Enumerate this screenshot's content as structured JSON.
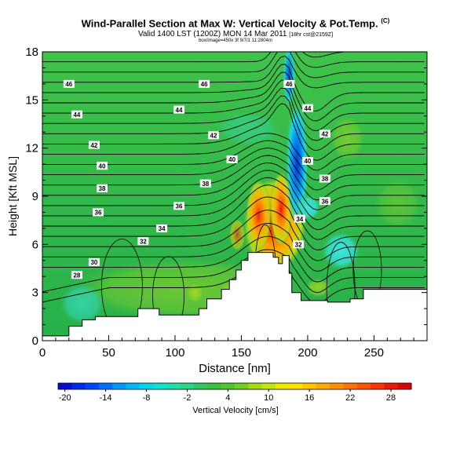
{
  "header": {
    "title": "Wind-Parallel Section at Max W: Vertical Velocity & Pot.Temp.",
    "title_mark": "(C)",
    "subtitle": "Valid 1400 LST (1200Z) MON 14 Mar 2011",
    "subtitle_small": "[18hr cst@2159Z]",
    "subtitle2": "box/image=450x 3f 9/7/1 11:2804m"
  },
  "chart_data": {
    "type": "heatmap",
    "title": "Wind-Parallel Section at Max W: Vertical Velocity & Pot.Temp.",
    "xlabel": "Distance [nm]",
    "ylabel": "Height [Kft MSL]",
    "xlim": [
      0,
      290
    ],
    "ylim": [
      0,
      18
    ],
    "x_ticks": [
      0,
      50,
      100,
      150,
      200,
      250
    ],
    "y_ticks": [
      0,
      3,
      6,
      9,
      12,
      15,
      18
    ],
    "colorbar": {
      "label": "Vertical Velocity [cm/s]",
      "tick_labels": [
        "-20",
        "-14",
        "-8",
        "-2",
        "4",
        "10",
        "16",
        "22",
        "28"
      ],
      "tick_values": [
        -20,
        -14,
        -8,
        -2,
        4,
        10,
        16,
        22,
        28
      ],
      "range": [
        -21,
        31
      ],
      "step": 2
    },
    "terrain_kft": [
      [
        0,
        0.3
      ],
      [
        20,
        0.3
      ],
      [
        20,
        0.9
      ],
      [
        30,
        0.9
      ],
      [
        30,
        1.3
      ],
      [
        40,
        1.3
      ],
      [
        40,
        1.5
      ],
      [
        72,
        1.5
      ],
      [
        72,
        2.0
      ],
      [
        88,
        2.0
      ],
      [
        88,
        1.6
      ],
      [
        118,
        1.6
      ],
      [
        118,
        2.0
      ],
      [
        124,
        2.0
      ],
      [
        124,
        2.6
      ],
      [
        135,
        2.6
      ],
      [
        135,
        3.2
      ],
      [
        141,
        3.2
      ],
      [
        141,
        3.8
      ],
      [
        146,
        3.8
      ],
      [
        146,
        4.4
      ],
      [
        150,
        4.4
      ],
      [
        150,
        5.0
      ],
      [
        155,
        5.0
      ],
      [
        155,
        5.5
      ],
      [
        174,
        5.5
      ],
      [
        174,
        5.2
      ],
      [
        178,
        5.2
      ],
      [
        178,
        4.8
      ],
      [
        181,
        4.8
      ],
      [
        181,
        5.3
      ],
      [
        186,
        5.3
      ],
      [
        186,
        4.2
      ],
      [
        188,
        4.2
      ],
      [
        188,
        3.0
      ],
      [
        195,
        3.0
      ],
      [
        195,
        2.5
      ],
      [
        215,
        2.5
      ],
      [
        215,
        2.4
      ],
      [
        232,
        2.4
      ],
      [
        232,
        2.6
      ],
      [
        242,
        2.6
      ],
      [
        242,
        3.2
      ],
      [
        290,
        3.2
      ]
    ],
    "theta_contours_label_units": "K",
    "contour_labels": [
      {
        "text": "46",
        "x": 20,
        "y": 16.0
      },
      {
        "text": "46",
        "x": 122,
        "y": 16.0
      },
      {
        "text": "46",
        "x": 186,
        "y": 16.0
      },
      {
        "text": "44",
        "x": 26,
        "y": 14.1
      },
      {
        "text": "44",
        "x": 103,
        "y": 14.4
      },
      {
        "text": "44",
        "x": 200,
        "y": 14.5
      },
      {
        "text": "42",
        "x": 39,
        "y": 12.2
      },
      {
        "text": "42",
        "x": 129,
        "y": 12.8
      },
      {
        "text": "42",
        "x": 213,
        "y": 12.9
      },
      {
        "text": "40",
        "x": 45,
        "y": 10.9
      },
      {
        "text": "40",
        "x": 143,
        "y": 11.3
      },
      {
        "text": "40",
        "x": 200,
        "y": 11.2
      },
      {
        "text": "38",
        "x": 45,
        "y": 9.5
      },
      {
        "text": "38",
        "x": 123,
        "y": 9.8
      },
      {
        "text": "38",
        "x": 213,
        "y": 10.1
      },
      {
        "text": "36",
        "x": 42,
        "y": 8.0
      },
      {
        "text": "36",
        "x": 103,
        "y": 8.4
      },
      {
        "text": "36",
        "x": 213,
        "y": 8.7
      },
      {
        "text": "34",
        "x": 90,
        "y": 7.0
      },
      {
        "text": "34",
        "x": 194,
        "y": 7.6
      },
      {
        "text": "32",
        "x": 76,
        "y": 6.2
      },
      {
        "text": "32",
        "x": 193,
        "y": 6.0
      },
      {
        "text": "30",
        "x": 39,
        "y": 4.9
      },
      {
        "text": "28",
        "x": 26,
        "y": 4.1
      }
    ]
  }
}
